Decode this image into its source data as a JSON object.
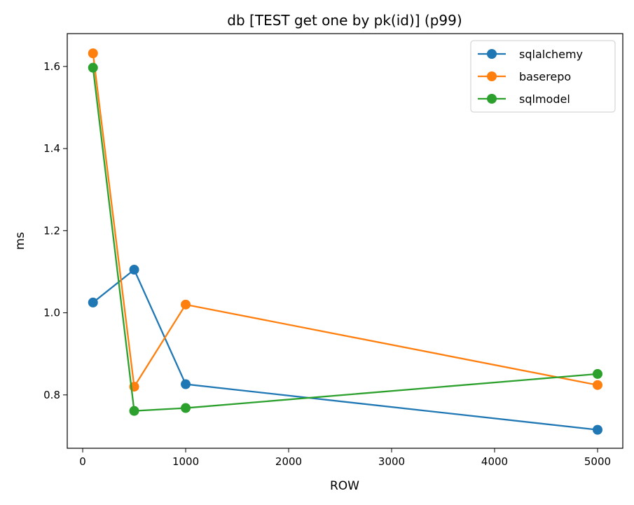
{
  "chart_data": {
    "type": "line",
    "title": "db [TEST get one by pk(id)] (p99)",
    "xlabel": "ROW",
    "ylabel": "ms",
    "x": [
      100,
      500,
      1000,
      5000
    ],
    "xlim": [
      -150,
      5245
    ],
    "ylim": [
      0.67,
      1.68
    ],
    "xticks": [
      0,
      1000,
      2000,
      3000,
      4000,
      5000
    ],
    "xtick_labels": [
      "0",
      "1000",
      "2000",
      "3000",
      "4000",
      "5000"
    ],
    "yticks": [
      0.8,
      1.0,
      1.2,
      1.4,
      1.6
    ],
    "ytick_labels": [
      "0.8",
      "1.0",
      "1.2",
      "1.4",
      "1.6"
    ],
    "grid": false,
    "legend_position": "top-right",
    "series": [
      {
        "name": "sqlalchemy",
        "color": "#1f77b4",
        "values": [
          1.025,
          1.105,
          0.826,
          0.715
        ]
      },
      {
        "name": "baserepo",
        "color": "#ff7f0e",
        "values": [
          1.632,
          0.82,
          1.02,
          0.824
        ]
      },
      {
        "name": "sqlmodel",
        "color": "#2ca02c",
        "values": [
          1.597,
          0.761,
          0.768,
          0.851
        ]
      }
    ]
  }
}
